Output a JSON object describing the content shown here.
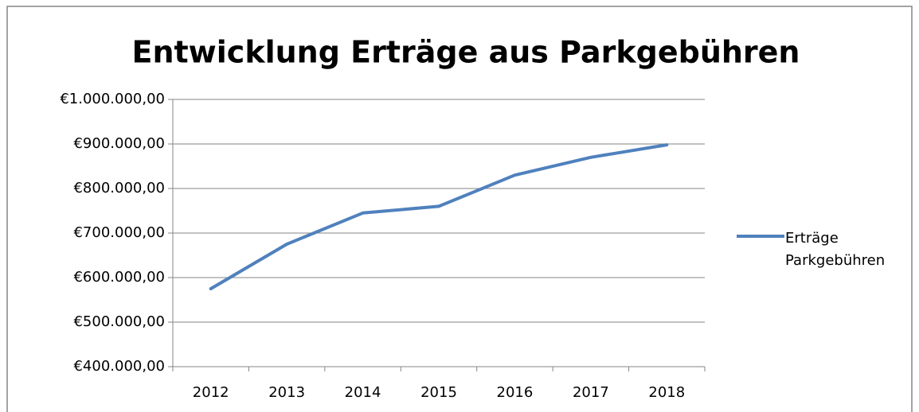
{
  "chart_data": {
    "type": "line",
    "title": "Entwicklung Erträge aus Parkgebühren",
    "categories": [
      "2012",
      "2013",
      "2014",
      "2015",
      "2016",
      "2017",
      "2018"
    ],
    "series": [
      {
        "name": "Erträge Parkgebühren",
        "color": "#4f81bd",
        "values": [
          575000,
          675000,
          745000,
          760000,
          830000,
          870000,
          898000
        ]
      }
    ],
    "ylim": [
      400000,
      1000000
    ],
    "yticks": [
      {
        "value": 400000,
        "label": "€400.000,00"
      },
      {
        "value": 500000,
        "label": "€500.000,00"
      },
      {
        "value": 600000,
        "label": "€600.000,00"
      },
      {
        "value": 700000,
        "label": "€700.000,00"
      },
      {
        "value": 800000,
        "label": "€800.000,00"
      },
      {
        "value": 900000,
        "label": "€900.000,00"
      },
      {
        "value": 1000000,
        "label": "€1.000.000,00"
      }
    ],
    "grid": true,
    "legend": "right"
  }
}
